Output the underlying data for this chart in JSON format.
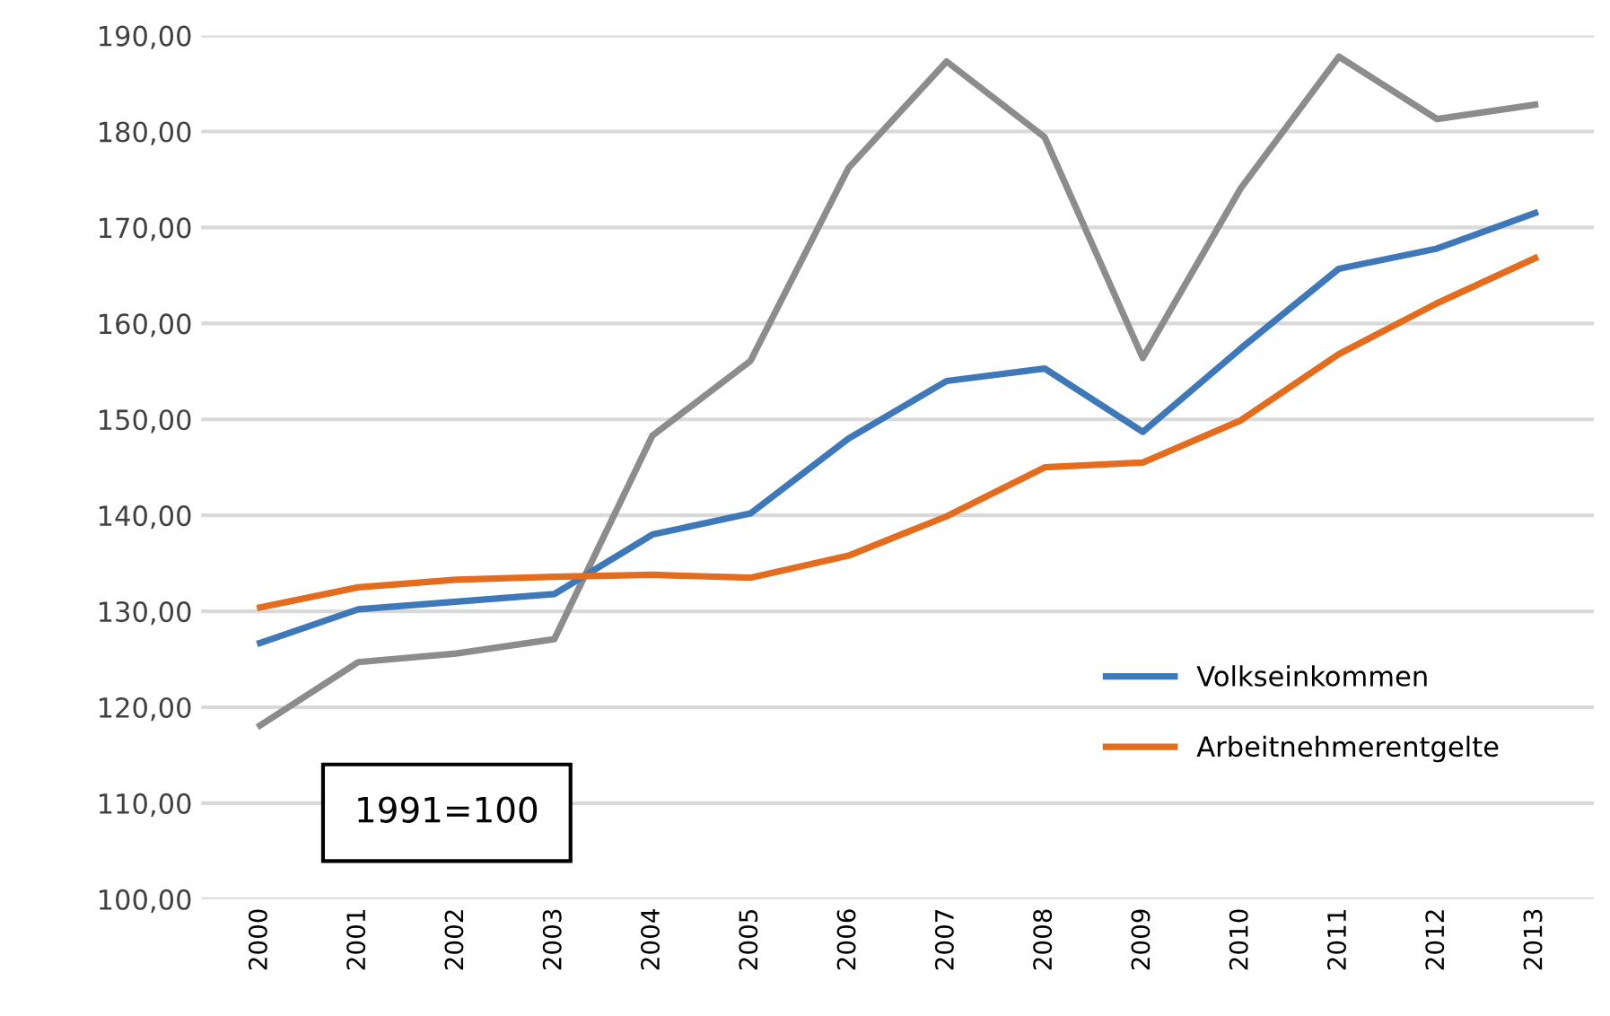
{
  "chart_data": {
    "type": "line",
    "categories": [
      "2000",
      "2001",
      "2002",
      "2003",
      "2004",
      "2005",
      "2006",
      "2007",
      "2008",
      "2009",
      "2010",
      "2011",
      "2012",
      "2013"
    ],
    "series": [
      {
        "color": "#8c8c8c",
        "values": [
          118.1,
          124.7,
          125.6,
          127.1,
          148.3,
          156.1,
          176.2,
          187.3,
          179.4,
          156.4,
          174.1,
          187.8,
          181.3,
          182.8
        ]
      },
      {
        "name": "Volkseinkommen",
        "color": "#3f78b8",
        "values": [
          126.7,
          130.2,
          131.0,
          131.8,
          138.0,
          140.2,
          148.0,
          154.0,
          155.3,
          148.7,
          157.4,
          165.7,
          167.8,
          171.5
        ]
      },
      {
        "name": "Arbeitnehmerentgelte",
        "color": "#e46c1e",
        "values": [
          130.4,
          132.5,
          133.3,
          133.6,
          133.8,
          133.5,
          135.8,
          139.9,
          145.0,
          145.5,
          149.9,
          156.8,
          162.1,
          166.8
        ]
      }
    ],
    "ylim": [
      100,
      190
    ],
    "yticks": [
      {
        "value": 100,
        "label": "100,00"
      },
      {
        "value": 110,
        "label": "110,00"
      },
      {
        "value": 120,
        "label": "120,00"
      },
      {
        "value": 130,
        "label": "130,00"
      },
      {
        "value": 140,
        "label": "140,00"
      },
      {
        "value": 150,
        "label": "150,00"
      },
      {
        "value": 160,
        "label": "160,00"
      },
      {
        "value": 170,
        "label": "170,00"
      },
      {
        "value": 180,
        "label": "180,00"
      },
      {
        "value": 190,
        "label": "190,00"
      }
    ],
    "grid": "y",
    "legend": "bottom right",
    "marker": "none",
    "line_style": "solid",
    "annotations": [
      "1991=100"
    ]
  }
}
